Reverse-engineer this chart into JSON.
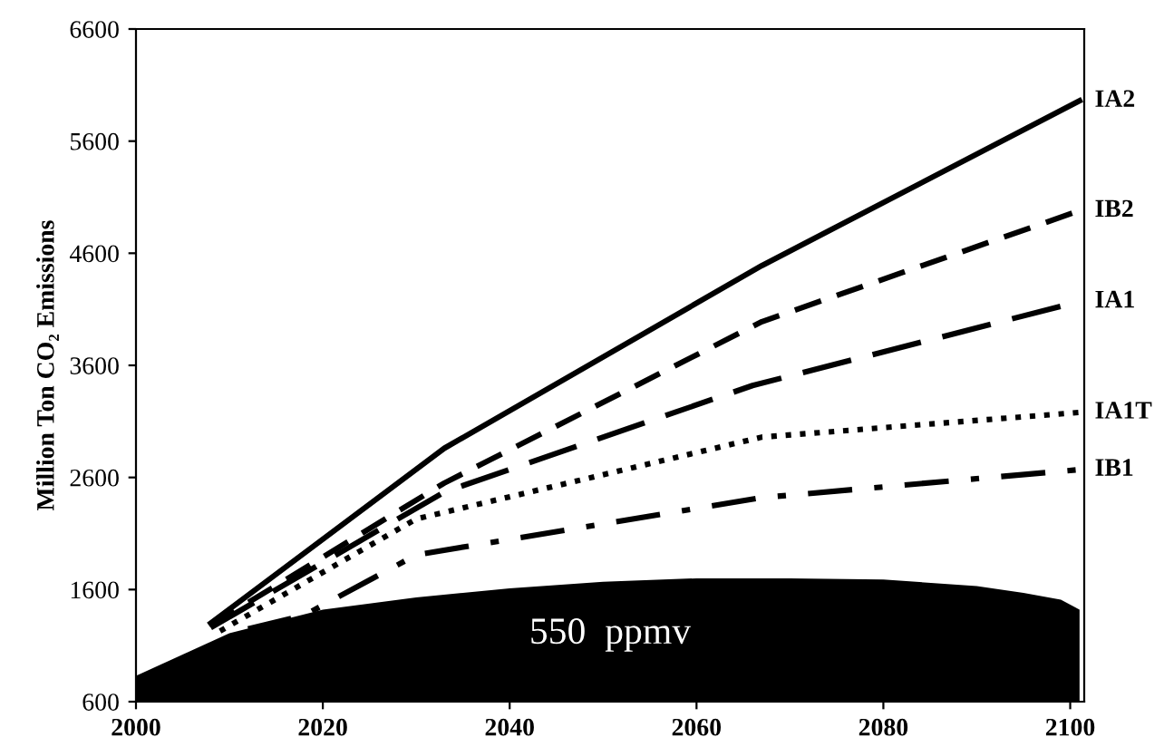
{
  "chart_data": {
    "type": "line",
    "ylabel": "Million Ton CO₂ Emissions",
    "xlim": [
      2000,
      2101.5
    ],
    "ylim": [
      600,
      6600
    ],
    "xticks": [
      2000,
      2020,
      2040,
      2060,
      2080,
      2100
    ],
    "yticks": [
      600,
      1600,
      2600,
      3600,
      4600,
      5600,
      6600
    ],
    "grid": false,
    "legend": false,
    "annotations": [
      "550  ppmv"
    ],
    "series": [
      {
        "type": "area",
        "color": "#000000",
        "x": [
          2000,
          2010,
          2020,
          2030,
          2040,
          2050,
          2060,
          2070,
          2080,
          2090,
          2095,
          2099,
          2101
        ],
        "values": [
          830,
          1210,
          1420,
          1530,
          1610,
          1670,
          1700,
          1700,
          1690,
          1630,
          1570,
          1510,
          1420
        ]
      },
      {
        "name": "IA2",
        "color": "#000000",
        "line_style": "solid",
        "x": [
          2008,
          2033,
          2067,
          2101
        ],
        "values": [
          1300,
          2860,
          4490,
          5960
        ]
      },
      {
        "name": "IB2",
        "color": "#000000",
        "line_style": "dashed",
        "x": [
          2008,
          2033,
          2067,
          2101
        ],
        "values": [
          1280,
          2550,
          3990,
          4980
        ]
      },
      {
        "name": "IA1",
        "color": "#000000",
        "line_style": "longdash",
        "x": [
          2008,
          2033,
          2066,
          2101
        ],
        "values": [
          1260,
          2470,
          3420,
          4170
        ]
      },
      {
        "name": "IA1T",
        "color": "#000000",
        "line_style": "dotted",
        "x": [
          2009,
          2030,
          2067,
          2101
        ],
        "values": [
          1230,
          2230,
          2960,
          3180
        ]
      },
      {
        "name": "IB1",
        "color": "#000000",
        "line_style": "dashdot",
        "x": [
          2012,
          2018,
          2030,
          2067,
          2101
        ],
        "values": [
          1250,
          1370,
          1910,
          2420,
          2670
        ]
      }
    ]
  }
}
